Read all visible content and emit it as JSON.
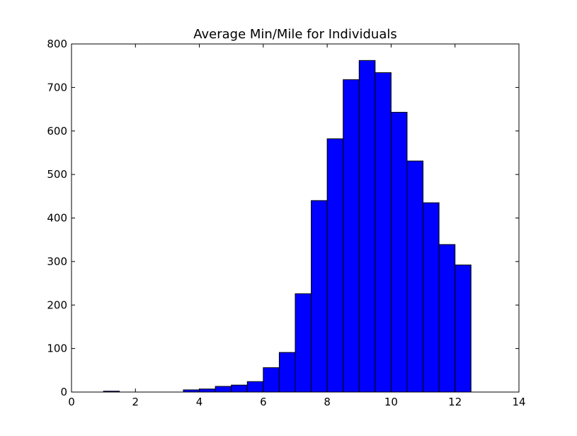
{
  "chart_data": {
    "type": "bar",
    "title": "Average Min/Mile for Individuals",
    "xlabel": "",
    "ylabel": "",
    "xlim": [
      0,
      14
    ],
    "ylim": [
      0,
      800
    ],
    "xticks": [
      0,
      2,
      4,
      6,
      8,
      10,
      12,
      14
    ],
    "yticks": [
      0,
      100,
      200,
      300,
      400,
      500,
      600,
      700,
      800
    ],
    "bin_width": 0.5,
    "bins": [
      {
        "x0": 1.0,
        "x1": 1.5,
        "value": 2
      },
      {
        "x0": 1.5,
        "x1": 2.0,
        "value": 0
      },
      {
        "x0": 2.0,
        "x1": 2.5,
        "value": 0
      },
      {
        "x0": 2.5,
        "x1": 3.0,
        "value": 0
      },
      {
        "x0": 3.0,
        "x1": 3.5,
        "value": 0
      },
      {
        "x0": 3.5,
        "x1": 4.0,
        "value": 5
      },
      {
        "x0": 4.0,
        "x1": 4.5,
        "value": 7
      },
      {
        "x0": 4.5,
        "x1": 5.0,
        "value": 13
      },
      {
        "x0": 5.0,
        "x1": 5.5,
        "value": 16
      },
      {
        "x0": 5.5,
        "x1": 6.0,
        "value": 24
      },
      {
        "x0": 6.0,
        "x1": 6.5,
        "value": 56
      },
      {
        "x0": 6.5,
        "x1": 7.0,
        "value": 91
      },
      {
        "x0": 7.0,
        "x1": 7.5,
        "value": 226
      },
      {
        "x0": 7.5,
        "x1": 8.0,
        "value": 440
      },
      {
        "x0": 8.0,
        "x1": 8.5,
        "value": 582
      },
      {
        "x0": 8.5,
        "x1": 9.0,
        "value": 718
      },
      {
        "x0": 9.0,
        "x1": 9.5,
        "value": 762
      },
      {
        "x0": 9.5,
        "x1": 10.0,
        "value": 734
      },
      {
        "x0": 10.0,
        "x1": 10.5,
        "value": 643
      },
      {
        "x0": 10.5,
        "x1": 11.0,
        "value": 531
      },
      {
        "x0": 11.0,
        "x1": 11.5,
        "value": 435
      },
      {
        "x0": 11.5,
        "x1": 12.0,
        "value": 339
      },
      {
        "x0": 12.0,
        "x1": 12.5,
        "value": 292
      }
    ],
    "grid": false,
    "legend": "none",
    "bar_color": "#0000ff",
    "edge_color": "#000000"
  }
}
